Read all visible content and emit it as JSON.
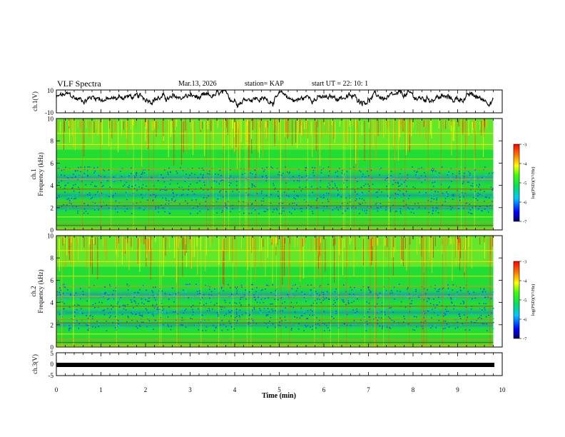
{
  "header": {
    "title": "VLF Spectra",
    "date": "Mar.13, 2026",
    "station": "station= KAP",
    "start_ut": "start UT =  22: 10: 1"
  },
  "colors": {
    "background": "#ffffff",
    "spectrogram_base": "#22dd33",
    "trace": "#000000"
  },
  "chart_data": [
    {
      "type": "line",
      "name": "ch1-waveform-panel",
      "ylabel": "ch.1(V)",
      "ylim": [
        -10,
        10
      ],
      "yticks": [
        "10",
        "-10"
      ],
      "xlim": [
        0,
        10
      ],
      "x_end": 9.8,
      "description_series": "noisy voltage trace, mostly between -2 and 8 V"
    },
    {
      "type": "heatmap",
      "name": "ch1-spectrogram",
      "ylabel_line1": "ch.1",
      "ylabel_line2": "Frequency (kHz)",
      "ylim": [
        0,
        10
      ],
      "yticks": [
        "0",
        "2",
        "4",
        "6",
        "8",
        "10"
      ],
      "xlim": [
        0,
        10
      ],
      "x_end": 9.8,
      "colorbar": {
        "label": "log(PSD)(V²/Hz)",
        "range": [
          -7,
          -3
        ],
        "ticks": [
          "-3",
          "-4",
          "-5",
          "-6",
          "-7"
        ]
      }
    },
    {
      "type": "heatmap",
      "name": "ch2-spectrogram",
      "ylabel_line1": "ch.2",
      "ylabel_line2": "Frequency (kHz)",
      "ylim": [
        0,
        10
      ],
      "yticks": [
        "0",
        "2",
        "4",
        "6",
        "8",
        "10"
      ],
      "xlim": [
        0,
        10
      ],
      "x_end": 9.8,
      "colorbar": {
        "label": "log(PSD)(V²/Hz)",
        "range": [
          -7,
          -3
        ],
        "ticks": [
          "-3",
          "-4",
          "-5",
          "-6",
          "-7"
        ]
      }
    },
    {
      "type": "line",
      "name": "ch3-waveform-panel",
      "ylabel": "ch.3(V)",
      "ylim": [
        -5,
        5
      ],
      "yticks": [
        "5",
        "0",
        "-5"
      ],
      "xlim": [
        0,
        10
      ],
      "x_end": 9.8,
      "description_series": "flat thick trace at about -1 V"
    }
  ],
  "xaxis": {
    "label": "Time (min)",
    "ticks": [
      "0",
      "1",
      "2",
      "3",
      "4",
      "5",
      "6",
      "7",
      "8",
      "9",
      "10"
    ]
  }
}
